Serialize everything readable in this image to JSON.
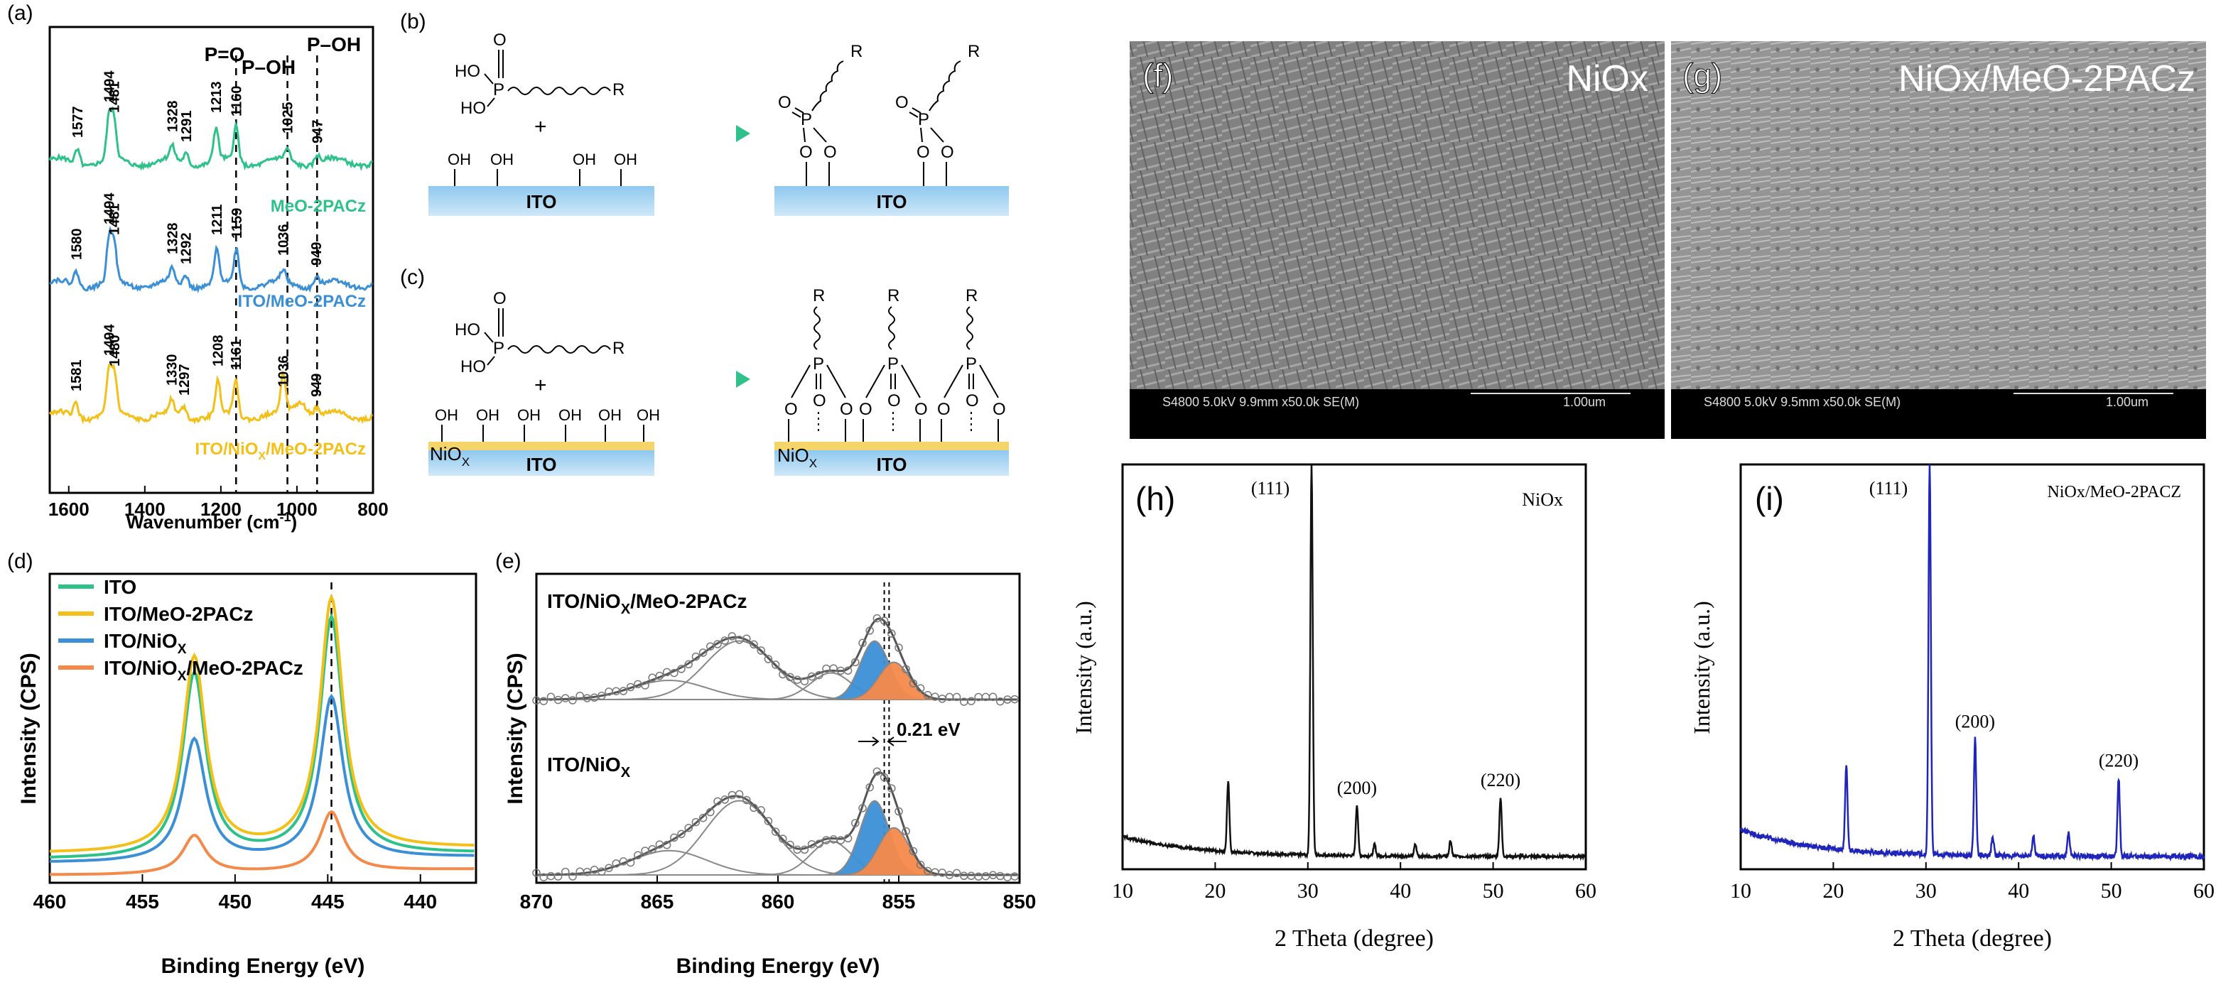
{
  "chart_data": [
    {
      "panel": "(a)",
      "type": "line",
      "xlabel": "Wavenumber (cm",
      "xlabel_sup": "-1",
      "xlabel_end": ")",
      "xlim": [
        1650,
        800
      ],
      "xticks": [
        1600,
        1400,
        1200,
        1000,
        800
      ],
      "top_labels": {
        "p_eq_o": "P=O",
        "p_oh": "P–OH",
        "p_oh2": "P–OH"
      },
      "dashed_lines": [
        1160,
        1025,
        947
      ],
      "series": [
        {
          "name": "MeO-2PACz",
          "color": "#2ec28a",
          "peaks": [
            "1577",
            "1494",
            "1481",
            "1328",
            "1291",
            "1213",
            "1160",
            "1025",
            "947"
          ]
        },
        {
          "name": "ITO/MeO-2PACz",
          "color": "#3b8fd6",
          "peaks": [
            "1580",
            "1494",
            "1481",
            "1328",
            "1292",
            "1211",
            "1159",
            "1036",
            "949"
          ]
        },
        {
          "name": "ITO/NiO",
          "name_sub": "X",
          "name_end": "/MeO-2PACz",
          "color": "#f2c018",
          "peaks": [
            "1581",
            "1494",
            "1480",
            "1330",
            "1297",
            "1208",
            "1161",
            "1036",
            "949"
          ]
        }
      ]
    },
    {
      "panel": "(b)",
      "type": "diagram",
      "substrate": "ITO",
      "groups": [
        "OH",
        "OH",
        "OH",
        "OH"
      ],
      "molecule": {
        "ho": "HO",
        "ho2": "HO",
        "p": "P",
        "o": "O",
        "r": "R",
        "plus": "+"
      }
    },
    {
      "panel": "(c)",
      "type": "diagram",
      "substrate": "ITO",
      "layer": "NiO",
      "layer_sub": "X",
      "groups": [
        "OH",
        "OH",
        "OH",
        "OH",
        "OH",
        "OH"
      ]
    },
    {
      "panel": "(d)",
      "type": "line",
      "xlabel": "Binding Energy (eV)",
      "ylabel": "Intensity (CPS)",
      "xlim": [
        460,
        437
      ],
      "xticks": [
        460,
        455,
        450,
        445,
        440
      ],
      "dashed_line": 444.8,
      "series": [
        {
          "name": "ITO",
          "color": "#2ec28a",
          "peaks": [
            {
              "x": 452.2,
              "h": 0.68
            },
            {
              "x": 444.8,
              "h": 0.88
            }
          ]
        },
        {
          "name": "ITO/MeO-2PACz",
          "color": "#f2c018",
          "peaks": [
            {
              "x": 452.2,
              "h": 0.72
            },
            {
              "x": 444.8,
              "h": 0.93
            }
          ]
        },
        {
          "name": "ITO/NiO",
          "name_sub": "X",
          "name_end": "",
          "color": "#3b8fd6",
          "peaks": [
            {
              "x": 452.2,
              "h": 0.45
            },
            {
              "x": 444.8,
              "h": 0.6
            }
          ]
        },
        {
          "name": "ITO/NiO",
          "name_sub": "X",
          "name_end": "/MeO-2PACz",
          "color": "#f5894a",
          "peaks": [
            {
              "x": 452.2,
              "h": 0.14
            },
            {
              "x": 444.8,
              "h": 0.22
            }
          ]
        }
      ]
    },
    {
      "panel": "(e)",
      "type": "line",
      "xlabel": "Binding Energy (eV)",
      "ylabel": "Intensity (CPS)",
      "xlim": [
        870,
        850
      ],
      "xticks": [
        870,
        865,
        860,
        855,
        850
      ],
      "dashed_lines": [
        855.6,
        855.4
      ],
      "shift_label": "0.21 eV",
      "series": [
        {
          "name": "ITO/NiO",
          "name_sub": "X",
          "name_end": "/MeO-2PACz"
        },
        {
          "name": "ITO/NiO",
          "name_sub": "X",
          "name_end": ""
        }
      ],
      "fill_colors": {
        "blue": "#3b8fd6",
        "orange": "#f5894a"
      }
    },
    {
      "panel": "(f)",
      "type": "image",
      "label": "NiOx",
      "info": "S4800 5.0kV 9.9mm x50.0k SE(M)",
      "scale": "1.00um"
    },
    {
      "panel": "(g)",
      "type": "image",
      "label": "NiOx/MeO-2PACz",
      "info": "S4800 5.0kV 9.5mm x50.0k SE(M)",
      "scale": "1.00um"
    },
    {
      "panel": "(h)",
      "type": "line",
      "label": "NiOx",
      "color": "#111111",
      "xlabel": "2 Theta (degree)",
      "ylabel": "Intensity (a.u.)",
      "xlim": [
        10,
        60
      ],
      "xticks": [
        10,
        20,
        30,
        40,
        50,
        60
      ],
      "peaks": [
        {
          "x": 21.4,
          "h": 0.18,
          "label": ""
        },
        {
          "x": 30.4,
          "h": 1.0,
          "label": "(111)"
        },
        {
          "x": 35.3,
          "h": 0.13,
          "label": "(200)"
        },
        {
          "x": 37.2,
          "h": 0.03,
          "label": ""
        },
        {
          "x": 41.6,
          "h": 0.03,
          "label": ""
        },
        {
          "x": 45.4,
          "h": 0.04,
          "label": ""
        },
        {
          "x": 50.8,
          "h": 0.15,
          "label": "(220)"
        }
      ]
    },
    {
      "panel": "(i)",
      "type": "line",
      "label": "NiOx/MeO-2PACZ",
      "color": "#1f25b8",
      "xlabel": "2 Theta (degree)",
      "ylabel": "Intensity (a.u.)",
      "xlim": [
        10,
        60
      ],
      "xticks": [
        10,
        20,
        30,
        40,
        50,
        60
      ],
      "peaks": [
        {
          "x": 21.4,
          "h": 0.22,
          "label": ""
        },
        {
          "x": 30.4,
          "h": 1.0,
          "label": "(111)"
        },
        {
          "x": 35.3,
          "h": 0.3,
          "label": "(200)"
        },
        {
          "x": 37.2,
          "h": 0.05,
          "label": ""
        },
        {
          "x": 41.6,
          "h": 0.05,
          "label": ""
        },
        {
          "x": 45.4,
          "h": 0.06,
          "label": ""
        },
        {
          "x": 50.8,
          "h": 0.2,
          "label": "(220)"
        }
      ]
    }
  ]
}
